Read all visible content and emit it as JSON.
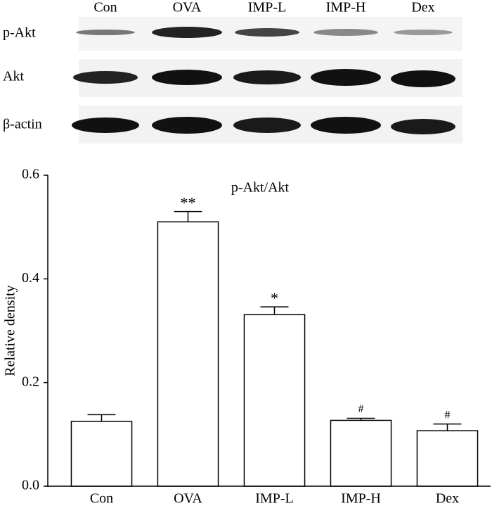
{
  "blot": {
    "lanes": [
      "Con",
      "OVA",
      "IMP-L",
      "IMP-H",
      "Dex"
    ],
    "rows": [
      "p-Akt",
      "Akt",
      "β-actin"
    ]
  },
  "chart_data": {
    "type": "bar",
    "title": "p-Akt/Akt",
    "y_label": "Relative density",
    "categories": [
      "Con",
      "OVA",
      "IMP-L",
      "IMP-H",
      "Dex"
    ],
    "values": [
      0.125,
      0.51,
      0.331,
      0.127,
      0.107
    ],
    "errors": [
      0.013,
      0.02,
      0.015,
      0.004,
      0.013
    ],
    "annotations": [
      null,
      "**",
      "*",
      "#",
      "#"
    ],
    "color": "#ffffff",
    "ylim": [
      0,
      0.6
    ],
    "yticks": [
      {
        "value": 0,
        "label": "0.0"
      },
      0.2,
      0.4,
      0.6
    ]
  }
}
